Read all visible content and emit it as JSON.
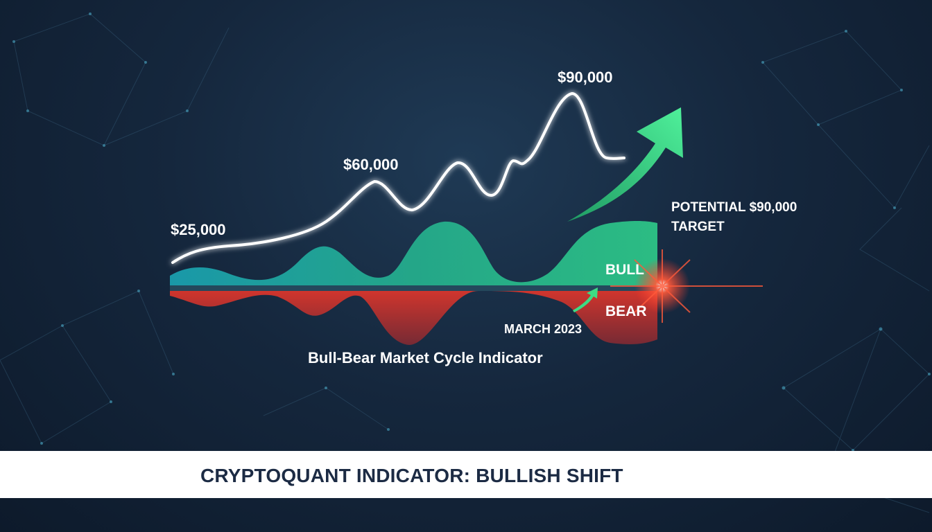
{
  "banner": {
    "title": "CRYPTOQUANT INDICATOR: BULLISH SHIFT"
  },
  "colors": {
    "background": "#15273d",
    "price_line": "#ffffff",
    "bull": "#2ecc8a",
    "bull_teal": "#1aa5b5",
    "bear": "#e0362b",
    "arrow": "#3ddc84",
    "baseline": "#2a4a60",
    "banner_text": "#1c2b44"
  },
  "chart_data": {
    "type": "area",
    "title": "Bull-Bear Market Cycle Indicator",
    "price_series": {
      "labels": [
        "$25,000",
        "$60,000",
        "$90,000"
      ],
      "values": [
        25000,
        60000,
        90000
      ]
    },
    "regions": [
      {
        "name": "BULL",
        "label": "BULL"
      },
      {
        "name": "BEAR",
        "label": "BEAR"
      }
    ],
    "annotations": {
      "march": "MARCH 2023",
      "target_line1": "POTENTIAL $90,000",
      "target_line2": "TARGET"
    }
  }
}
